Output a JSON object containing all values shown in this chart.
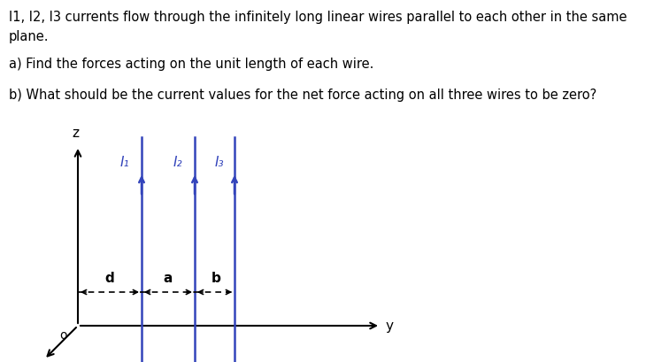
{
  "title_line1": "I1, I2, I3 currents flow through the infinitely long linear wires parallel to each other in the same",
  "title_line2": "plane.",
  "question_a": "a) Find the forces acting on the unit length of each wire.",
  "question_b": "b) What should be the current values for the net force acting on all three wires to be zero?",
  "wire_color": "#3344bb",
  "axis_color": "#000000",
  "text_color": "#000000",
  "wire_labels": [
    "I₁",
    "I₂",
    "I₃"
  ],
  "label_d": "d",
  "label_a": "a",
  "label_b": "b",
  "background_color": "#ffffff",
  "fig_width": 7.3,
  "fig_height": 4.09,
  "dpi": 100
}
